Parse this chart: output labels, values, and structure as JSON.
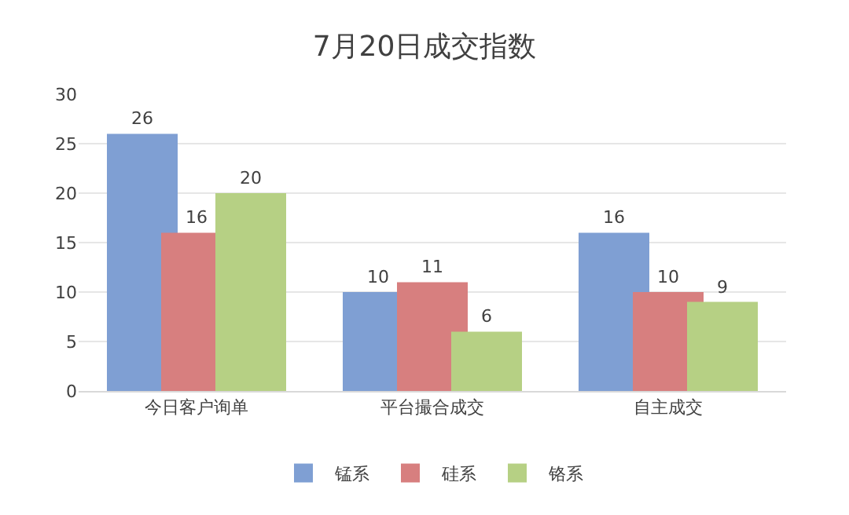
{
  "chart_data": {
    "type": "bar",
    "title": "7月20日成交指数",
    "categories": [
      "今日客户询单",
      "平台撮合成交",
      "自主成交"
    ],
    "series": [
      {
        "name": "锰系",
        "color": "#7f9fd3",
        "values": [
          26,
          10,
          16
        ]
      },
      {
        "name": "硅系",
        "color": "#d77f7f",
        "values": [
          16,
          11,
          10
        ]
      },
      {
        "name": "铬系",
        "color": "#b6d084",
        "values": [
          20,
          6,
          9
        ]
      }
    ],
    "ylim": [
      0,
      30
    ],
    "yticks": [
      0,
      5,
      10,
      15,
      20,
      25,
      30
    ],
    "grid": "y",
    "legend": "bottom",
    "data_labels": true
  }
}
